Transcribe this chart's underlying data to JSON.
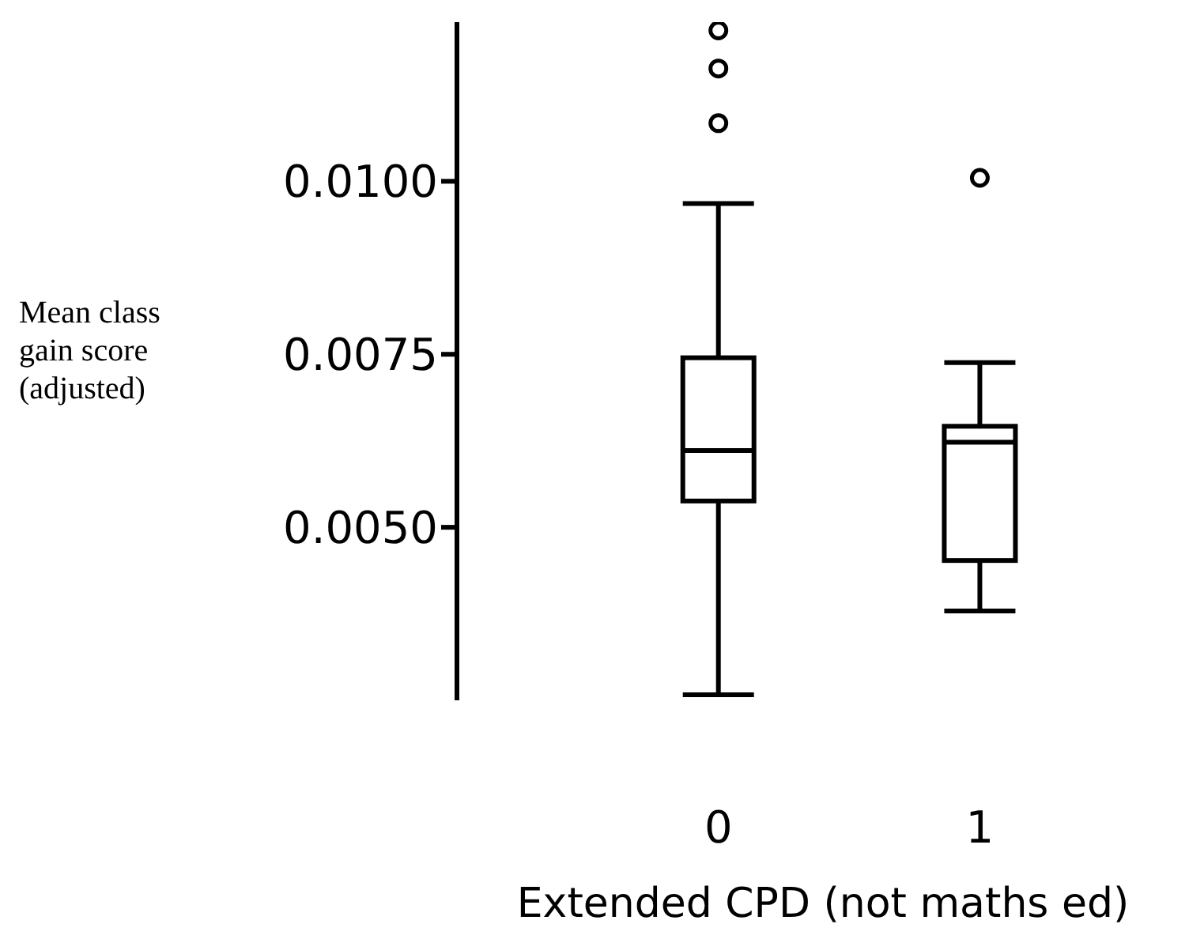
{
  "chart_data": {
    "type": "box",
    "categories": [
      "0",
      "1"
    ],
    "xlabel": "Extended CPD (not maths ed)",
    "ylabel": "Mean class gain score (adjusted)",
    "ylim": [
      0.0025,
      0.0123
    ],
    "yticks": [
      {
        "value": 0.005,
        "label": "0.0050"
      },
      {
        "value": 0.0075,
        "label": "0.0075"
      },
      {
        "value": 0.01,
        "label": "0.0100"
      }
    ],
    "boxes": [
      {
        "low": 0.00258,
        "q1": 0.00538,
        "median": 0.00611,
        "q3": 0.00745,
        "high": 0.00968,
        "outliers": [
          0.01084,
          0.01163,
          0.01218
        ]
      },
      {
        "low": 0.00379,
        "q1": 0.00452,
        "median": 0.00623,
        "q3": 0.00646,
        "high": 0.00738,
        "outliers": [
          0.01005
        ]
      }
    ],
    "grid": false,
    "legend": false
  }
}
